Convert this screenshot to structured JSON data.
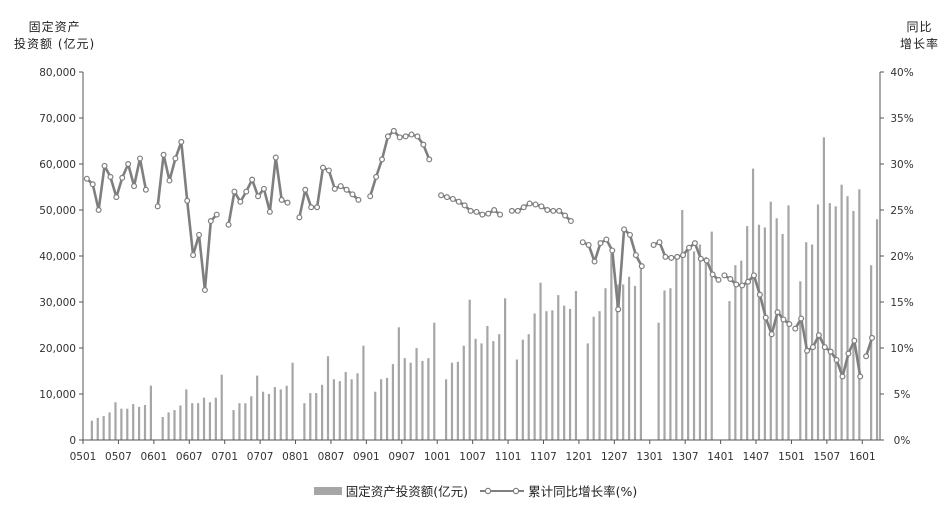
{
  "chart_data": {
    "type": "bar+line",
    "y_left_title": [
      "固定资产",
      "投资额 (亿元)"
    ],
    "y_right_title": [
      "同比",
      "增长率"
    ],
    "y_left_ticks": [
      "0",
      "10,000",
      "20,000",
      "30,000",
      "40,000",
      "50,000",
      "60,000",
      "70,000",
      "80,000"
    ],
    "y_right_ticks": [
      "0%",
      "5%",
      "10%",
      "15%",
      "20%",
      "25%",
      "30%",
      "35%",
      "40%"
    ],
    "x_ticks": [
      "0501",
      "0507",
      "0601",
      "0607",
      "0701",
      "0707",
      "0801",
      "0807",
      "0901",
      "0907",
      "1001",
      "1007",
      "1101",
      "1107",
      "1201",
      "1207",
      "1301",
      "1307",
      "1401",
      "1407",
      "1501",
      "1507",
      "1601"
    ],
    "y_left_range": [
      0,
      80000
    ],
    "y_right_range": [
      0,
      40
    ],
    "grid": false,
    "legend_position": "bottom",
    "series": [
      {
        "name": "固定资产投资额(亿元)",
        "type": "bar",
        "color": "#a6a6a6",
        "values": [
          [
            4200,
            4800,
            5200,
            6000,
            8200,
            6800,
            6800,
            7800,
            7200,
            7600,
            11800
          ],
          [
            5000,
            6000,
            6500,
            7500,
            11000,
            8000,
            8000,
            9200,
            8200,
            9200,
            14200
          ],
          [
            6500,
            8000,
            8000,
            9500,
            14000,
            10500,
            10000,
            11500,
            11000,
            11800,
            16800
          ],
          [
            8000,
            10200,
            10200,
            12000,
            18200,
            13200,
            12800,
            14800,
            13200,
            14500,
            20500
          ],
          [
            10500,
            13200,
            13500,
            16500,
            24500,
            17800,
            16800,
            20000,
            17200,
            17800,
            25500
          ],
          [
            13200,
            16800,
            17000,
            20500,
            30500,
            22000,
            21000,
            24800,
            21500,
            23000,
            30800
          ],
          [
            17500,
            21800,
            23000,
            27500,
            34200,
            28000,
            28200,
            31500,
            29200,
            28500,
            32400
          ],
          [
            21000,
            26800,
            28000,
            33000,
            40500,
            33800,
            33800,
            35500,
            33500,
            38200
          ],
          [
            25500,
            32500,
            33000,
            39800,
            50000,
            42200,
            41000,
            42500,
            39800,
            45300
          ],
          [
            30200,
            38000,
            39000,
            46500,
            59000,
            46800,
            46200,
            51800,
            48200,
            44800,
            51000
          ],
          [
            34500,
            43000,
            42500,
            51200,
            65800,
            51500,
            50800,
            55500,
            53000,
            49800,
            54500
          ],
          [
            38000,
            48000
          ]
        ]
      },
      {
        "name": "累计同比增长率(%)",
        "type": "line",
        "color": "#7f7f7f",
        "values": [
          [
            28.4,
            27.8,
            25.0,
            29.8,
            28.6,
            26.4,
            28.5,
            30.0,
            27.6,
            30.6,
            27.2
          ],
          [
            25.4,
            31.0,
            28.2,
            30.6,
            32.4,
            26.0,
            20.1,
            22.3,
            16.3,
            23.8,
            24.5
          ],
          [
            23.4,
            27.0,
            25.9,
            27.0,
            28.3,
            26.5,
            27.3,
            24.8,
            30.7,
            26.1,
            25.8
          ],
          [
            24.2,
            27.2,
            25.3,
            25.3,
            29.6,
            29.3,
            27.3,
            27.6,
            27.2,
            26.7,
            26.1
          ],
          [
            26.5,
            28.6,
            30.5,
            33.0,
            33.6,
            32.9,
            33.0,
            33.2,
            33.0,
            32.1,
            30.5
          ],
          [
            26.6,
            26.4,
            26.2,
            25.9,
            25.5,
            24.9,
            24.8,
            24.5,
            24.6,
            25.0,
            24.5
          ],
          [
            24.9,
            24.9,
            25.3,
            25.7,
            25.6,
            25.4,
            25.0,
            24.9,
            24.9,
            24.4,
            23.8
          ],
          [
            21.5,
            21.2,
            19.4,
            21.4,
            21.8,
            20.6,
            14.2,
            22.9,
            22.3,
            20.1,
            18.9
          ],
          [
            21.2,
            21.5,
            19.9,
            19.8,
            19.9,
            20.1,
            20.9,
            21.4,
            19.7,
            19.5,
            18.0,
            17.4
          ],
          [
            17.9,
            17.5,
            16.9,
            16.8,
            17.2,
            17.9,
            15.8,
            13.3,
            11.5,
            13.9,
            13.1,
            12.6
          ],
          [
            12.1,
            13.2,
            9.7,
            10.1,
            11.4,
            10.1,
            9.6,
            8.7,
            6.9,
            9.4,
            10.8,
            6.9
          ],
          [
            9.1,
            11.1
          ]
        ]
      }
    ]
  }
}
